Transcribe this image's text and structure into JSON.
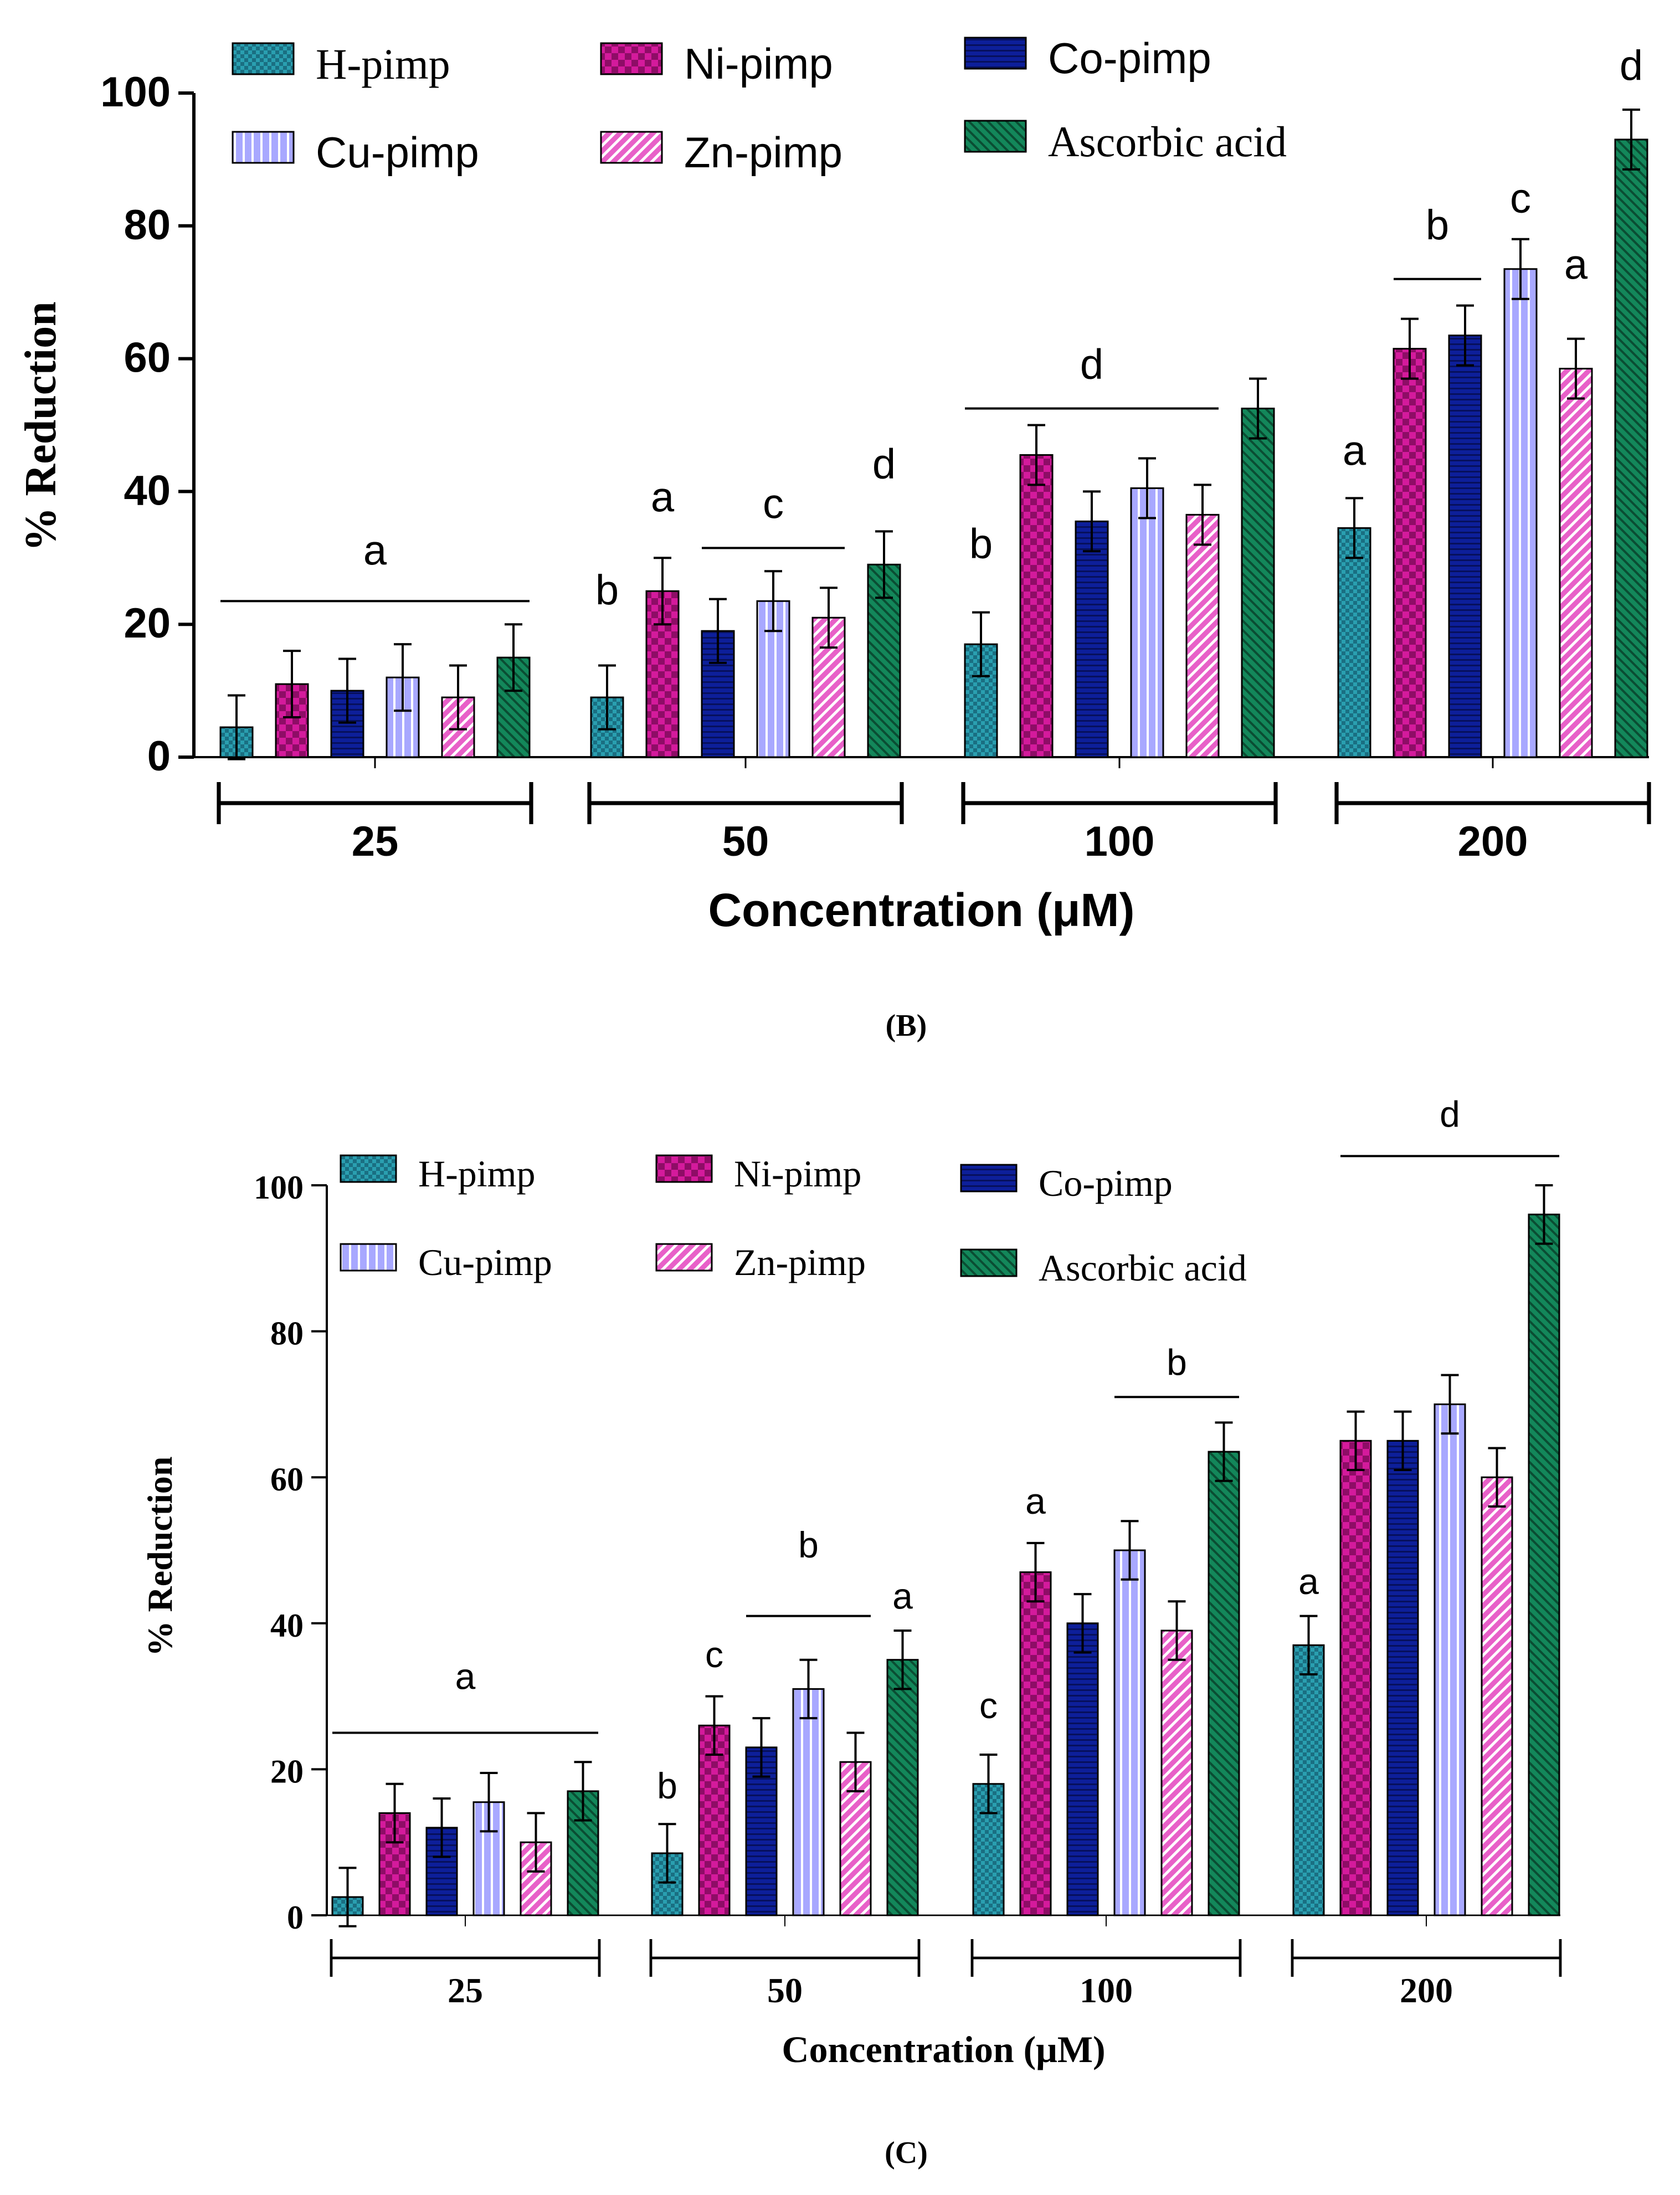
{
  "panels": [
    {
      "panel_label": "(B)",
      "chart_data": {
        "type": "bar",
        "title": "",
        "xlabel": "Concentration (μM)",
        "ylabel": "% Reduction",
        "ylim": [
          0,
          100
        ],
        "yticks": [
          "0",
          "20",
          "40",
          "60",
          "80",
          "100"
        ],
        "categories": [
          "25",
          "50",
          "100",
          "200"
        ],
        "legend": [
          "H-pimp",
          "Ni-pimp",
          "Co-pimp",
          "Cu-pimp",
          "Zn-pimp",
          "Ascorbic acid"
        ],
        "legend_position": "top",
        "series": [
          {
            "name": "H-pimp",
            "values": [
              4.5,
              9,
              17,
              34.5
            ],
            "errors": [
              4.8,
              4.8,
              4.8,
              4.5
            ]
          },
          {
            "name": "Ni-pimp",
            "values": [
              11,
              25,
              45.5,
              61.5
            ],
            "errors": [
              5,
              5,
              4.5,
              4.5
            ]
          },
          {
            "name": "Co-pimp",
            "values": [
              10,
              19,
              35.5,
              63.5
            ],
            "errors": [
              4.8,
              4.8,
              4.5,
              4.5
            ]
          },
          {
            "name": "Cu-pimp",
            "values": [
              12,
              23.5,
              40.5,
              73.5
            ],
            "errors": [
              5,
              4.5,
              4.5,
              4.5
            ]
          },
          {
            "name": "Zn-pimp",
            "values": [
              9,
              21,
              36.5,
              58.5
            ],
            "errors": [
              4.8,
              4.5,
              4.5,
              4.5
            ]
          },
          {
            "name": "Ascorbic acid",
            "values": [
              15,
              29,
              52.5,
              93
            ],
            "errors": [
              5,
              5,
              4.5,
              4.5
            ]
          }
        ],
        "annotations": [
          {
            "text": "a",
            "group": 0,
            "span": [
              0,
              5
            ],
            "bar_at": 23.5,
            "y": 29
          },
          {
            "text": "b",
            "group": 1,
            "bar": 0,
            "y": 23
          },
          {
            "text": "a",
            "group": 1,
            "bar": 1,
            "y": 37
          },
          {
            "text": "c",
            "group": 1,
            "span": [
              2,
              4
            ],
            "bar_at": 31.5,
            "y": 36
          },
          {
            "text": "d",
            "group": 1,
            "bar": 5,
            "y": 42
          },
          {
            "text": "b",
            "group": 2,
            "bar": 0,
            "y": 30
          },
          {
            "text": "d",
            "group": 2,
            "span": [
              0,
              4
            ],
            "bar_at": 52.5,
            "y": 57
          },
          {
            "text": "a",
            "group": 3,
            "bar": 0,
            "y": 44
          },
          {
            "text": "b",
            "group": 3,
            "span": [
              1,
              2
            ],
            "bar_at": 72,
            "y": 78
          },
          {
            "text": "c",
            "group": 3,
            "bar": 3,
            "y": 82
          },
          {
            "text": "a",
            "group": 3,
            "bar": 4,
            "y": 72
          },
          {
            "text": "d",
            "group": 3,
            "bar": 5,
            "y": 102
          }
        ]
      }
    },
    {
      "panel_label": "(C)",
      "chart_data": {
        "type": "bar",
        "title": "",
        "xlabel": "Concentration (μM)",
        "ylabel": "% Reduction",
        "ylim": [
          0,
          100
        ],
        "yticks": [
          "0",
          "20",
          "40",
          "60",
          "80",
          "100"
        ],
        "categories": [
          "25",
          "50",
          "100",
          "200"
        ],
        "legend": [
          "H-pimp",
          "Ni-pimp",
          "Co-pimp",
          "Cu-pimp",
          "Zn-pimp",
          "Ascorbic acid"
        ],
        "legend_position": "top",
        "series": [
          {
            "name": "H-pimp",
            "values": [
              2.5,
              8.5,
              18,
              37
            ],
            "errors": [
              4,
              4,
              4,
              4
            ]
          },
          {
            "name": "Ni-pimp",
            "values": [
              14,
              26,
              47,
              65
            ],
            "errors": [
              4,
              4,
              4,
              4
            ]
          },
          {
            "name": "Co-pimp",
            "values": [
              12,
              23,
              40,
              65
            ],
            "errors": [
              4,
              4,
              4,
              4
            ]
          },
          {
            "name": "Cu-pimp",
            "values": [
              15.5,
              31,
              50,
              70
            ],
            "errors": [
              4,
              4,
              4,
              4
            ]
          },
          {
            "name": "Zn-pimp",
            "values": [
              10,
              21,
              39,
              60
            ],
            "errors": [
              4,
              4,
              4,
              4
            ]
          },
          {
            "name": "Ascorbic acid",
            "values": [
              17,
              35,
              63.5,
              96
            ],
            "errors": [
              4,
              4,
              4,
              4
            ]
          }
        ],
        "annotations": [
          {
            "text": "a",
            "group": 0,
            "span": [
              0,
              5
            ],
            "bar_at": 25,
            "y": 31
          },
          {
            "text": "b",
            "group": 1,
            "bar": 0,
            "y": 16
          },
          {
            "text": "c",
            "group": 1,
            "bar": 1,
            "y": 34
          },
          {
            "text": "b",
            "group": 1,
            "span": [
              2,
              4
            ],
            "bar_at": 41,
            "y": 49
          },
          {
            "text": "a",
            "group": 1,
            "bar": 5,
            "y": 42
          },
          {
            "text": "c",
            "group": 2,
            "bar": 0,
            "y": 27
          },
          {
            "text": "a",
            "group": 2,
            "bar": 1,
            "y": 55
          },
          {
            "text": "b",
            "group": 2,
            "span": [
              3,
              5
            ],
            "bar_at": 71,
            "y": 74
          },
          {
            "text": "a",
            "group": 3,
            "bar": 0,
            "y": 44
          },
          {
            "text": "d",
            "group": 3,
            "span": [
              1,
              5
            ],
            "bar_at": 104,
            "y": 108
          }
        ]
      }
    }
  ],
  "series_colors": [
    "#2a9fb0",
    "#d41a9c",
    "#0d1f9a",
    "#a8a8ff",
    "#e860c8",
    "#13875a"
  ],
  "series_patterns": [
    "checker",
    "checker-big",
    "hstripe",
    "vstripe",
    "diag",
    "diag-dark"
  ]
}
